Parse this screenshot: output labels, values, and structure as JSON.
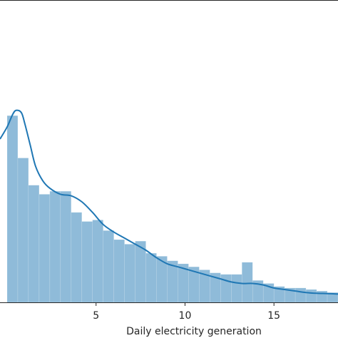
{
  "chart_data": {
    "type": "bar",
    "xlabel": "Daily electricity generation",
    "ylabel": "",
    "title": "",
    "xlim": [
      -0.4,
      18.6
    ],
    "ylim": [
      0,
      0.2
    ],
    "xticks": [
      5,
      10,
      15
    ],
    "bar_color": "#1f77b4",
    "bar_alpha": 0.5,
    "line_color": "#1f77b4",
    "bins": {
      "edges": [
        0.0,
        0.6,
        1.2,
        1.8,
        2.4,
        3.0,
        3.6,
        4.2,
        4.8,
        5.4,
        6.0,
        6.6,
        7.2,
        7.8,
        8.4,
        9.0,
        9.6,
        10.2,
        10.8,
        11.4,
        12.0,
        12.6,
        13.2,
        13.8,
        14.4,
        15.0,
        15.6,
        16.2,
        16.8,
        17.4,
        18.0,
        18.6
      ],
      "values": [
        0.1235,
        0.0955,
        0.0775,
        0.0715,
        0.0735,
        0.0735,
        0.0595,
        0.0535,
        0.0545,
        0.0475,
        0.0415,
        0.0385,
        0.0405,
        0.0325,
        0.0305,
        0.0275,
        0.0255,
        0.0235,
        0.0215,
        0.0195,
        0.0185,
        0.0185,
        0.0265,
        0.0145,
        0.0125,
        0.0105,
        0.0095,
        0.0095,
        0.0085,
        0.0075,
        0.0065
      ]
    },
    "kde": {
      "x": [
        -0.4,
        0.0,
        0.3,
        0.5,
        0.8,
        1.0,
        1.3,
        1.6,
        2.0,
        2.4,
        3.0,
        3.6,
        4.2,
        4.8,
        5.4,
        6.0,
        6.6,
        7.2,
        7.8,
        8.4,
        9.0,
        9.6,
        10.2,
        10.8,
        11.4,
        12.0,
        12.6,
        13.2,
        13.8,
        14.4,
        15.0,
        15.6,
        16.2,
        16.8,
        17.4,
        18.0,
        18.6
      ],
      "y": [
        0.108,
        0.116,
        0.124,
        0.127,
        0.1255,
        0.118,
        0.104,
        0.09,
        0.0805,
        0.0755,
        0.0715,
        0.0705,
        0.0665,
        0.0595,
        0.0515,
        0.0465,
        0.0425,
        0.0385,
        0.0345,
        0.0295,
        0.0255,
        0.0235,
        0.0215,
        0.0195,
        0.0175,
        0.0155,
        0.0135,
        0.0125,
        0.0125,
        0.0115,
        0.0095,
        0.0085,
        0.0075,
        0.0065,
        0.006,
        0.0058,
        0.0055
      ]
    }
  }
}
